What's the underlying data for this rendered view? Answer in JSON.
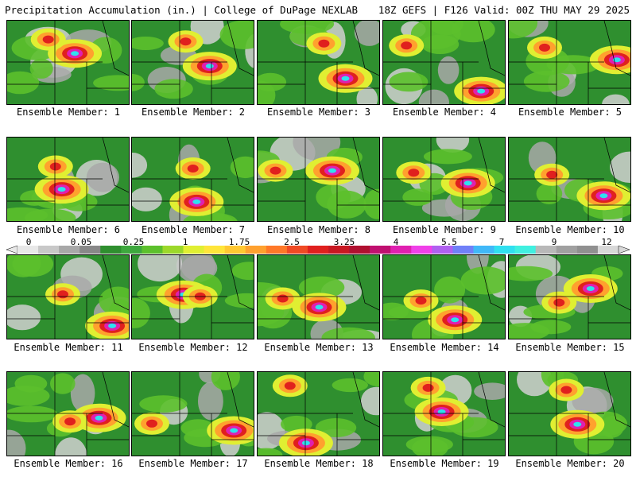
{
  "header": {
    "title_left": "Precipitation Accumulation (in.) | College of DuPage NEXLAB",
    "title_right": "18Z GEFS | F126 Valid: 00Z THU MAY 29 2025"
  },
  "label_prefix": "Ensemble Member: ",
  "members": [
    {
      "label": "Ensemble Member: 1"
    },
    {
      "label": "Ensemble Member: 2"
    },
    {
      "label": "Ensemble Member: 3"
    },
    {
      "label": "Ensemble Member: 4"
    },
    {
      "label": "Ensemble Member: 5"
    },
    {
      "label": "Ensemble Member: 6"
    },
    {
      "label": "Ensemble Member: 7"
    },
    {
      "label": "Ensemble Member: 8"
    },
    {
      "label": "Ensemble Member: 9"
    },
    {
      "label": "Ensemble Member: 10"
    },
    {
      "label": "Ensemble Member: 11"
    },
    {
      "label": "Ensemble Member: 12"
    },
    {
      "label": "Ensemble Member: 13"
    },
    {
      "label": "Ensemble Member: 14"
    },
    {
      "label": "Ensemble Member: 15"
    },
    {
      "label": "Ensemble Member: 16"
    },
    {
      "label": "Ensemble Member: 17"
    },
    {
      "label": "Ensemble Member: 18"
    },
    {
      "label": "Ensemble Member: 19"
    },
    {
      "label": "Ensemble Member: 20"
    }
  ],
  "colorbar": {
    "labels": [
      "0",
      "0.05",
      "0.25",
      "1",
      "1.75",
      "2.5",
      "3.25",
      "4",
      "5.5",
      "7",
      "9",
      "12"
    ],
    "colors": [
      "#e8e8e8",
      "#c8c8c8",
      "#a8a8a8",
      "#888888",
      "#2f8f2f",
      "#3ea83e",
      "#5cc02c",
      "#9cd82a",
      "#e0ef32",
      "#ffe53a",
      "#ffc832",
      "#ffa12e",
      "#ff7828",
      "#f04a24",
      "#e0201e",
      "#c81822",
      "#b01030",
      "#c01070",
      "#e020b0",
      "#f040e8",
      "#b060f0",
      "#7080f8",
      "#40b8f8",
      "#30e0f0",
      "#40f0e0",
      "#b8b8b8",
      "#a0a0a0",
      "#909090",
      "#d8d8d8"
    ]
  }
}
